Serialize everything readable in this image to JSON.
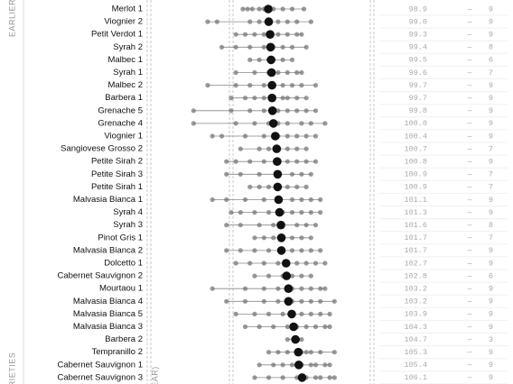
{
  "chart_data": {
    "type": "dotplot",
    "side_labels": [
      "EARLIER",
      "RIETIES"
    ],
    "axis_fragment": "EAR)",
    "separator": "—",
    "categories": [
      "Merlot 1",
      "Viognier 2",
      "Petit Verdot 1",
      "Syrah 2",
      "Malbec 1",
      "Syrah 1",
      "Malbec 2",
      "Barbera 1",
      "Grenache 5",
      "Grenache 4",
      "Viognier 1",
      "Sangiovese Grosso 2",
      "Petite Sirah 2",
      "Petite Sirah 3",
      "Petite Sirah 1",
      "Malvasia Bianca 1",
      "Syrah 4",
      "Syrah 3",
      "Pinot Gris 1",
      "Malvasia Bianca 2",
      "Dolcetto 1",
      "Cabernet Sauvignon 2",
      "Mourtaou 1",
      "Malvasia Bianca 4",
      "Malvasia Bianca 5",
      "Malvasia Bianca 3",
      "Barbera 2",
      "Tempranillo 2",
      "Cabernet Sauvignon 1",
      "Cabernet Sauvignon 3"
    ],
    "values": [
      98.9,
      99.0,
      99.3,
      99.4,
      99.5,
      99.6,
      99.7,
      99.7,
      99.8,
      100.0,
      100.4,
      100.7,
      100.8,
      100.9,
      100.9,
      101.1,
      101.3,
      101.6,
      101.7,
      101.7,
      102.7,
      102.8,
      103.2,
      103.2,
      103.9,
      104.3,
      104.7,
      105.3,
      105.4,
      106.1
    ],
    "value_labels": [
      "98.9",
      "99.0",
      "99.3",
      "99.4",
      "99.5",
      "99.6",
      "99.7",
      "99.7",
      "99.8",
      "100.0",
      "100.4",
      "100.7",
      "100.8",
      "100.9",
      "100.9",
      "101.1",
      "101.3",
      "101.6",
      "101.7",
      "101.7",
      "102.7",
      "102.8",
      "103.2",
      "103.2",
      "103.9",
      "104.3",
      "104.7",
      "105.3",
      "105.4",
      "106.1"
    ],
    "counts": [
      9,
      9,
      9,
      8,
      6,
      7,
      9,
      9,
      9,
      9,
      9,
      7,
      9,
      7,
      7,
      9,
      9,
      8,
      7,
      9,
      9,
      6,
      9,
      9,
      9,
      9,
      3,
      9,
      9,
      9
    ],
    "points": [
      [
        93.5,
        94.5,
        95.5,
        97,
        98,
        100,
        102,
        104,
        106.5
      ],
      [
        86,
        88,
        95,
        97,
        99,
        101,
        103,
        105,
        108
      ],
      [
        92,
        94,
        96,
        98,
        99,
        101,
        103,
        105,
        106
      ],
      [
        89,
        92,
        95,
        98,
        100,
        102,
        104,
        107
      ],
      [
        95,
        97,
        99,
        100,
        102,
        104
      ],
      [
        92,
        96,
        99,
        101,
        103,
        105,
        106
      ],
      [
        86,
        92,
        95,
        98,
        100,
        102,
        104,
        106,
        109
      ],
      [
        91,
        94,
        96,
        98,
        100,
        102,
        103,
        105,
        107
      ],
      [
        83,
        91,
        95,
        98,
        101,
        103,
        105,
        107,
        109
      ],
      [
        83,
        92,
        96,
        99,
        101,
        103,
        106,
        108,
        111
      ],
      [
        87,
        89,
        94,
        98,
        101,
        103,
        105,
        107,
        109
      ],
      [
        93,
        97,
        99,
        101,
        103,
        105,
        107
      ],
      [
        90,
        92,
        95,
        98,
        101,
        103,
        105,
        107,
        109
      ],
      [
        90,
        93,
        97,
        101,
        104,
        106,
        108
      ],
      [
        95,
        97,
        99,
        101,
        103,
        105,
        107
      ],
      [
        87,
        90,
        94,
        98,
        101,
        104,
        106,
        108,
        110
      ],
      [
        91,
        93,
        96,
        99,
        102,
        104,
        106,
        108,
        110
      ],
      [
        90,
        93,
        97,
        100,
        102,
        105,
        107,
        109
      ],
      [
        96,
        98,
        100,
        102,
        104,
        106,
        108
      ],
      [
        90,
        93,
        96,
        99,
        102,
        104,
        106,
        108,
        110
      ],
      [
        92,
        95,
        98,
        101,
        103,
        105,
        107,
        109,
        111
      ],
      [
        96,
        99,
        102,
        104,
        106,
        108
      ],
      [
        87,
        94,
        98,
        101,
        104,
        106,
        108,
        110,
        111
      ],
      [
        90,
        94,
        98,
        101,
        104,
        106,
        108,
        110,
        113
      ],
      [
        92,
        96,
        99,
        102,
        104,
        106,
        108,
        110,
        112
      ],
      [
        94,
        97,
        100,
        103,
        105,
        107,
        109,
        111,
        112
      ],
      [
        103,
        105,
        106
      ],
      [
        99,
        101,
        103,
        105,
        106,
        107,
        108,
        110,
        113
      ],
      [
        97,
        100,
        102,
        104,
        106,
        108,
        109,
        111,
        112
      ],
      [
        96,
        99,
        102,
        105,
        107,
        109,
        110,
        112,
        113
      ]
    ],
    "mean_color": "#111111",
    "point_color": "#777777"
  }
}
